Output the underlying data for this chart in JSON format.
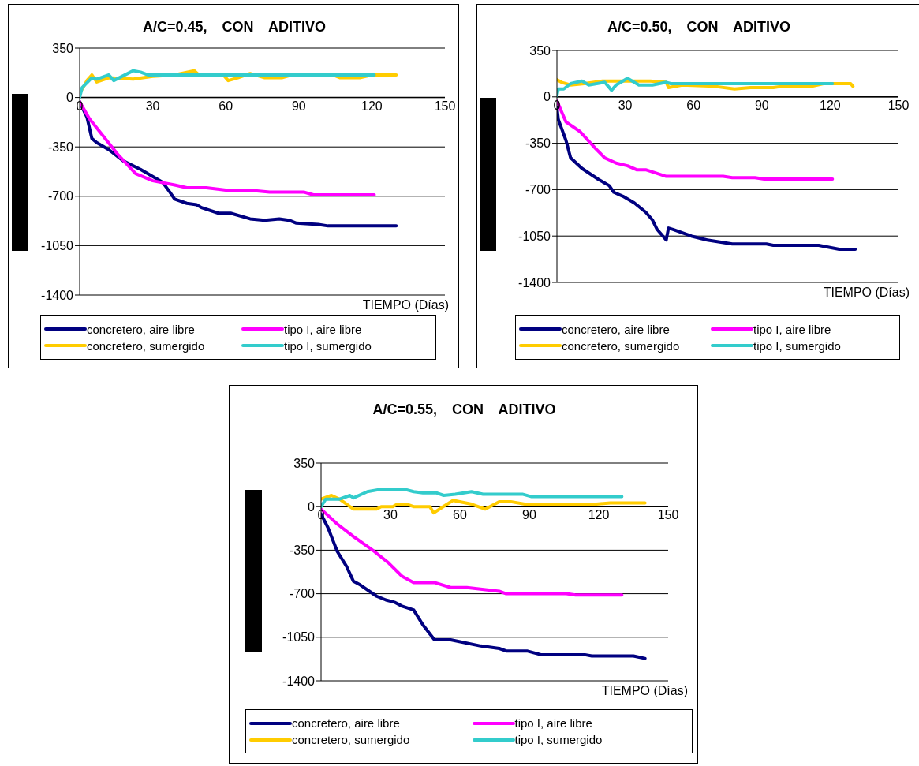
{
  "chart_data": [
    {
      "type": "line",
      "title": "A/C=0.45, CON ADITIVO",
      "xlabel": "TIEMPO (Días)",
      "xlim": [
        0,
        150
      ],
      "xticks": [
        0,
        30,
        60,
        90,
        120,
        150
      ],
      "ylim": [
        -1400,
        350
      ],
      "yticks": [
        -1400,
        -1050,
        -700,
        -350,
        0,
        350
      ],
      "grid": "y",
      "legend": "bottom",
      "marker": "none",
      "line_style": "solid",
      "series": [
        {
          "name": "concretero, aire libre",
          "color": "#000080",
          "x": [
            0,
            3,
            5,
            7,
            12,
            18,
            25,
            30,
            34,
            37,
            39,
            44,
            48,
            50,
            57,
            62,
            70,
            76,
            82,
            86,
            89,
            98,
            102,
            130
          ],
          "values": [
            -30,
            -140,
            -290,
            -320,
            -370,
            -450,
            -510,
            -560,
            -600,
            -670,
            -720,
            -750,
            -760,
            -780,
            -820,
            -820,
            -860,
            -870,
            -860,
            -870,
            -890,
            -900,
            -910,
            -910
          ]
        },
        {
          "name": "tipo I, aire libre",
          "color": "#ff00ff",
          "x": [
            0,
            4,
            10,
            16,
            23,
            30,
            39,
            44,
            52,
            62,
            72,
            78,
            92,
            96,
            121
          ],
          "values": [
            -30,
            -150,
            -280,
            -410,
            -540,
            -590,
            -620,
            -640,
            -640,
            -660,
            -660,
            -670,
            -670,
            -690,
            -690
          ]
        },
        {
          "name": "concretero, sumergido",
          "color": "#ffcc00",
          "x": [
            0,
            3,
            5,
            7,
            12,
            22,
            30,
            39,
            47,
            49,
            59,
            61,
            65,
            70,
            76,
            83,
            87,
            104,
            107,
            115,
            120,
            130
          ],
          "values": [
            30,
            120,
            160,
            110,
            140,
            130,
            150,
            160,
            190,
            160,
            160,
            120,
            140,
            170,
            140,
            140,
            160,
            160,
            140,
            140,
            160,
            160
          ]
        },
        {
          "name": "tipo I, sumergido",
          "color": "#33cccc",
          "x": [
            0,
            1,
            5,
            7,
            12,
            14,
            22,
            25,
            28,
            35,
            38,
            121
          ],
          "values": [
            0,
            70,
            140,
            130,
            160,
            120,
            190,
            180,
            160,
            160,
            160,
            160
          ]
        }
      ]
    },
    {
      "type": "line",
      "title": "A/C=0.50, CON ADITIVO",
      "xlabel": "TIEMPO (Días)",
      "xlim": [
        0,
        150
      ],
      "xticks": [
        0,
        30,
        60,
        90,
        120,
        150
      ],
      "ylim": [
        -1400,
        350
      ],
      "yticks": [
        -1400,
        -1050,
        -700,
        -350,
        0,
        350
      ],
      "grid": "y",
      "legend": "bottom",
      "marker": "none",
      "line_style": "solid",
      "series": [
        {
          "name": "concretero, aire libre",
          "color": "#000080",
          "x": [
            0,
            0.6,
            4,
            6,
            11,
            18,
            23,
            25,
            29,
            34,
            39,
            42,
            44,
            48,
            49,
            51,
            59,
            66,
            77,
            92,
            95,
            115,
            124,
            131
          ],
          "values": [
            -80,
            -170,
            -330,
            -460,
            -540,
            -620,
            -670,
            -720,
            -750,
            -800,
            -870,
            -930,
            -1000,
            -1080,
            -990,
            -1000,
            -1050,
            -1080,
            -1110,
            -1110,
            -1120,
            -1120,
            -1150,
            -1150
          ]
        },
        {
          "name": "tipo I, aire libre",
          "color": "#ff00ff",
          "x": [
            0,
            4,
            10,
            17,
            21,
            26,
            31,
            35,
            39,
            48,
            73,
            77,
            87,
            91,
            121
          ],
          "values": [
            -30,
            -190,
            -260,
            -390,
            -460,
            -500,
            -520,
            -550,
            -550,
            -600,
            -600,
            -610,
            -610,
            -620,
            -620
          ]
        },
        {
          "name": "concretero, sumergido",
          "color": "#ffcc00",
          "x": [
            0,
            2,
            6,
            12,
            20,
            25,
            41,
            48,
            49,
            55,
            69,
            78,
            85,
            95,
            99,
            112,
            117,
            129,
            130
          ],
          "values": [
            130,
            110,
            90,
            100,
            120,
            120,
            120,
            110,
            70,
            90,
            80,
            60,
            70,
            70,
            80,
            80,
            100,
            100,
            80
          ]
        },
        {
          "name": "tipo I, sumergido",
          "color": "#33cccc",
          "x": [
            0,
            0.6,
            3,
            6,
            11,
            14,
            21,
            22.5,
            24,
            26,
            31,
            36,
            42,
            48,
            50,
            121
          ],
          "values": [
            10,
            60,
            60,
            100,
            120,
            90,
            110,
            80,
            50,
            90,
            140,
            90,
            90,
            110,
            100,
            100
          ]
        }
      ]
    },
    {
      "type": "line",
      "title": "A/C=0.55, CON ADITIVO",
      "xlabel": "TIEMPO (Días)",
      "xlim": [
        0,
        150
      ],
      "xticks": [
        0,
        30,
        60,
        90,
        120,
        150
      ],
      "ylim": [
        -1400,
        350
      ],
      "yticks": [
        -1400,
        -1050,
        -700,
        -350,
        0,
        350
      ],
      "grid": "y",
      "legend": "bottom",
      "marker": "none",
      "line_style": "solid",
      "series": [
        {
          "name": "concretero, aire libre",
          "color": "#000080",
          "x": [
            0,
            3,
            7,
            11,
            14,
            17,
            24,
            28,
            32,
            35,
            40,
            44,
            49,
            56,
            69,
            77,
            80,
            89,
            95,
            114,
            117,
            135,
            140
          ],
          "values": [
            -60,
            -170,
            -360,
            -480,
            -600,
            -630,
            -720,
            -750,
            -770,
            -800,
            -830,
            -950,
            -1070,
            -1070,
            -1120,
            -1140,
            -1160,
            -1160,
            -1190,
            -1190,
            -1200,
            -1200,
            -1220
          ]
        },
        {
          "name": "tipo I, aire libre",
          "color": "#ff00ff",
          "x": [
            0,
            7,
            14,
            23,
            29,
            35,
            40,
            49,
            56,
            63,
            77,
            80,
            106,
            110,
            130
          ],
          "values": [
            -20,
            -140,
            -240,
            -360,
            -450,
            -560,
            -610,
            -610,
            -650,
            -650,
            -680,
            -700,
            -700,
            -710,
            -710
          ]
        },
        {
          "name": "concretero, sumergido",
          "color": "#ffcc00",
          "x": [
            0,
            4.5,
            8,
            14,
            24,
            26,
            31,
            33,
            37,
            40,
            47,
            48.7,
            52,
            57,
            65,
            71,
            77,
            82,
            88,
            119,
            125,
            140
          ],
          "values": [
            60,
            90,
            60,
            -20,
            -20,
            0,
            0,
            20,
            20,
            0,
            0,
            -50,
            -10,
            50,
            20,
            -20,
            40,
            40,
            20,
            20,
            30,
            30
          ]
        },
        {
          "name": "tipo I, sumergido",
          "color": "#33cccc",
          "x": [
            0,
            2,
            8,
            12.5,
            14,
            20,
            26,
            36,
            40,
            44,
            50,
            53,
            58,
            65,
            70,
            87,
            91,
            130
          ],
          "values": [
            0,
            60,
            60,
            90,
            70,
            120,
            140,
            140,
            120,
            110,
            110,
            90,
            100,
            120,
            100,
            100,
            80,
            80
          ]
        }
      ]
    }
  ]
}
